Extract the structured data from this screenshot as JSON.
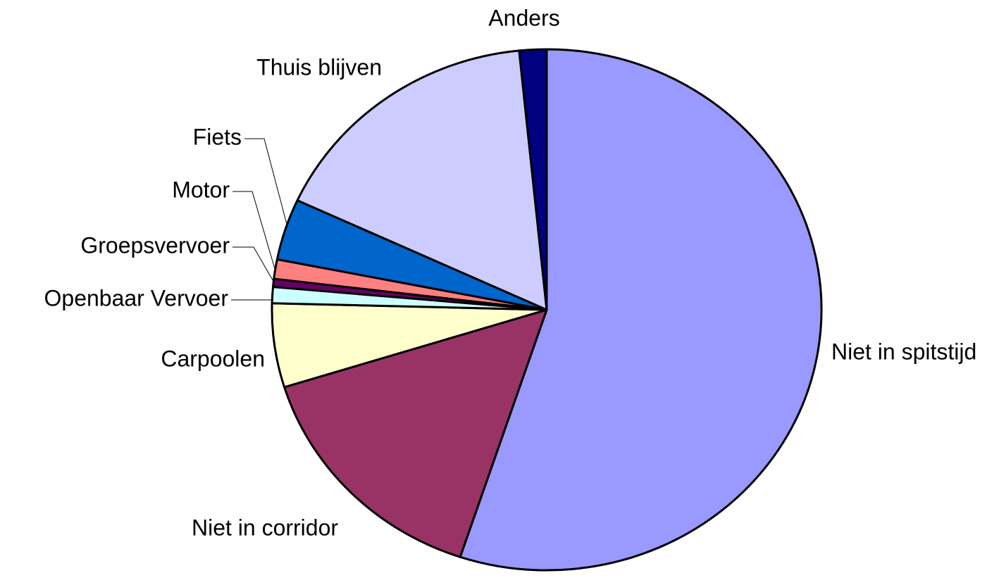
{
  "chart_data": {
    "type": "pie",
    "categories": [
      "Niet in spitstijd",
      "Niet in corridor",
      "Carpoolen",
      "Openbaar Vervoer",
      "Groepsvervoer",
      "Motor",
      "Fiets",
      "Thuis blijven",
      "Anders"
    ],
    "values": [
      55.1,
      15.1,
      5.2,
      1.0,
      0.5,
      1.2,
      3.8,
      16.5,
      1.6
    ],
    "colors": [
      "#9999ff",
      "#993366",
      "#ffffcc",
      "#ccffff",
      "#660066",
      "#ff8080",
      "#0066cc",
      "#ccccff",
      "#000080"
    ]
  }
}
